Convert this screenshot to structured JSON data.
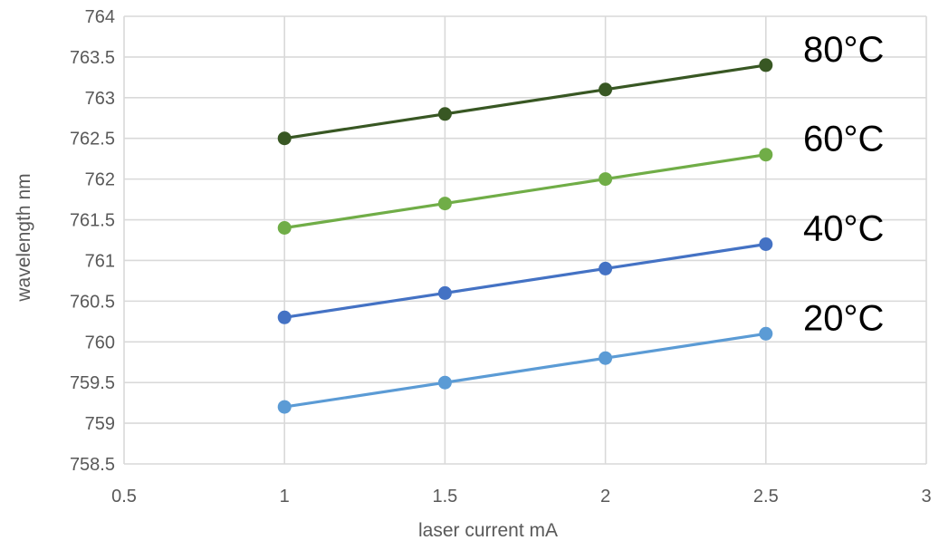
{
  "chart_data": {
    "type": "line",
    "title": "",
    "xlabel": "laser current mA",
    "ylabel": "wavelength nm",
    "xlim": [
      0.5,
      3
    ],
    "ylim": [
      758.5,
      764
    ],
    "x_ticks": [
      "0.5",
      "1",
      "1.5",
      "2",
      "2.5",
      "3"
    ],
    "y_ticks": [
      "758.5",
      "759",
      "759.5",
      "760",
      "760.5",
      "761",
      "761.5",
      "762",
      "762.5",
      "763",
      "763.5",
      "764"
    ],
    "grid": true,
    "legend": "none",
    "x": [
      1,
      1.5,
      2,
      2.5
    ],
    "series": [
      {
        "name": "20°C",
        "values": [
          759.2,
          759.5,
          759.8,
          760.1
        ],
        "color": "#5b9bd5"
      },
      {
        "name": "40°C",
        "values": [
          760.3,
          760.6,
          760.9,
          761.2
        ],
        "color": "#4472c4"
      },
      {
        "name": "60°C",
        "values": [
          761.4,
          761.7,
          762.0,
          762.3
        ],
        "color": "#70ad47"
      },
      {
        "name": "80°C",
        "values": [
          762.5,
          762.8,
          763.1,
          763.4
        ],
        "color": "#385723"
      }
    ]
  }
}
